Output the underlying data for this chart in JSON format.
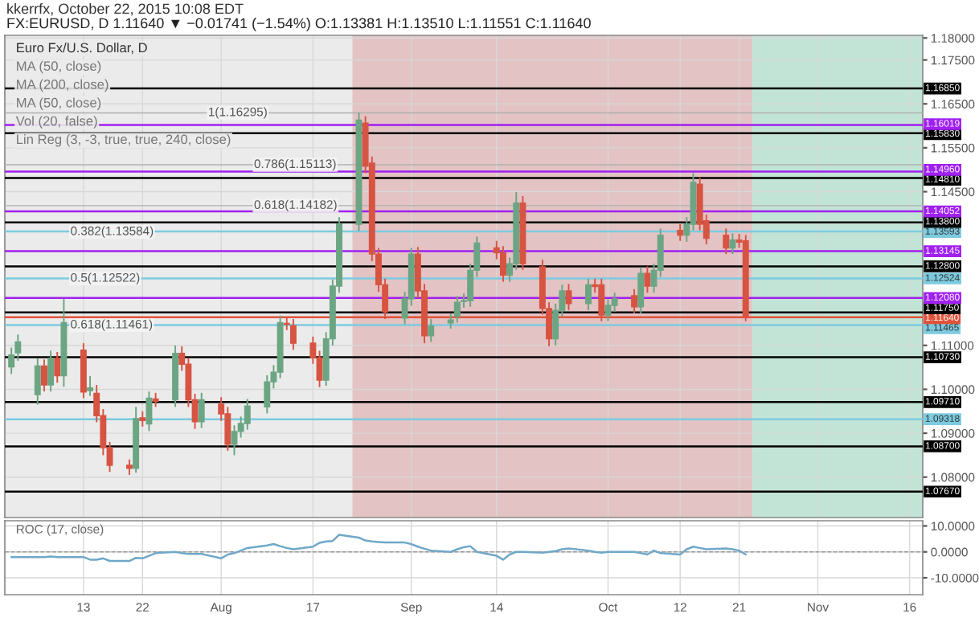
{
  "chart_data": [
    {
      "type": "candlestick",
      "title": "kkerrfx, October 22, 2015 10:08 EDT",
      "subtitle": "FX:EURUSD, D 1.11640 ▼ −0.01741 (−1.54%) O:1.13381 H:1.13510 L:1.11551 C:1.11640",
      "annotations": [
        "Euro Fx/U.S. Dollar, D",
        "MA (50, close)",
        "MA (200, close)",
        "MA (50, close)",
        "Vol (20, false)",
        "Lin Reg (3, -3, true, true, 240, close)",
        {
          "text": "1(1.16295)",
          "x": "2015-08-01",
          "y": 1.16295
        },
        {
          "text": "0.786(1.15113)",
          "x": "2015-08-08",
          "y": 1.15113
        },
        {
          "text": "0.618(1.14182)",
          "x": "2015-08-08",
          "y": 1.14182
        },
        {
          "text": "0.382(1.13584)",
          "x": "2015-07-11",
          "y": 1.13584
        },
        {
          "text": "0.5(1.12522)",
          "x": "2015-07-11",
          "y": 1.12522
        },
        {
          "text": "0.618(1.11461)",
          "x": "2015-07-11",
          "y": 1.11461
        }
      ],
      "x": [
        "2015-07-02",
        "2015-07-03",
        "2015-07-06",
        "2015-07-07",
        "2015-07-08",
        "2015-07-09",
        "2015-07-10",
        "2015-07-13",
        "2015-07-14",
        "2015-07-15",
        "2015-07-16",
        "2015-07-17",
        "2015-07-20",
        "2015-07-21",
        "2015-07-22",
        "2015-07-23",
        "2015-07-24",
        "2015-07-27",
        "2015-07-28",
        "2015-07-29",
        "2015-07-30",
        "2015-07-31",
        "2015-08-03",
        "2015-08-04",
        "2015-08-05",
        "2015-08-06",
        "2015-08-07",
        "2015-08-10",
        "2015-08-11",
        "2015-08-12",
        "2015-08-13",
        "2015-08-14",
        "2015-08-17",
        "2015-08-18",
        "2015-08-19",
        "2015-08-20",
        "2015-08-21",
        "2015-08-24",
        "2015-08-25",
        "2015-08-26",
        "2015-08-27",
        "2015-08-28",
        "2015-08-31",
        "2015-09-01",
        "2015-09-02",
        "2015-09-03",
        "2015-09-04",
        "2015-09-07",
        "2015-09-08",
        "2015-09-09",
        "2015-09-10",
        "2015-09-11",
        "2015-09-14",
        "2015-09-15",
        "2015-09-16",
        "2015-09-17",
        "2015-09-18",
        "2015-09-21",
        "2015-09-22",
        "2015-09-23",
        "2015-09-24",
        "2015-09-25",
        "2015-09-28",
        "2015-09-29",
        "2015-09-30",
        "2015-10-01",
        "2015-10-02",
        "2015-10-05",
        "2015-10-06",
        "2015-10-07",
        "2015-10-08",
        "2015-10-09",
        "2015-10-12",
        "2015-10-13",
        "2015-10-14",
        "2015-10-15",
        "2015-10-16",
        "2015-10-19",
        "2015-10-20",
        "2015-10-21",
        "2015-10-22"
      ],
      "ohlc": [
        [
          1.1051,
          1.1095,
          1.1035,
          1.1078
        ],
        [
          1.1083,
          1.1125,
          1.1065,
          1.1108
        ],
        [
          1.0988,
          1.107,
          1.0965,
          1.1053
        ],
        [
          1.1053,
          1.1068,
          1.0995,
          1.101
        ],
        [
          1.101,
          1.1088,
          1.0995,
          1.1071
        ],
        [
          1.1071,
          1.1085,
          1.1015,
          1.1031
        ],
        [
          1.1031,
          1.1206,
          1.1006,
          1.1152
        ],
        [
          1.1089,
          1.1105,
          1.098,
          1.0994
        ],
        [
          1.0997,
          1.103,
          1.0985,
          1.1003
        ],
        [
          1.0991,
          1.101,
          1.0925,
          1.094
        ],
        [
          1.094,
          1.0955,
          1.085,
          1.0867
        ],
        [
          1.0867,
          1.088,
          1.0812,
          1.0827
        ],
        [
          1.0827,
          1.084,
          1.0805,
          1.082
        ],
        [
          1.082,
          1.096,
          1.081,
          1.0933
        ],
        [
          1.0935,
          1.095,
          1.0915,
          1.0929
        ],
        [
          1.0921,
          1.0995,
          1.0905,
          1.098
        ],
        [
          1.0978,
          1.0992,
          1.096,
          1.0973
        ],
        [
          1.0976,
          1.11,
          1.096,
          1.1082
        ],
        [
          1.1082,
          1.1098,
          1.1042,
          1.1057
        ],
        [
          1.1057,
          1.1072,
          1.096,
          1.0976
        ],
        [
          1.0976,
          1.099,
          1.091,
          1.0926
        ],
        [
          1.0926,
          1.0992,
          1.0912,
          1.0976
        ],
        [
          1.0966,
          1.0982,
          1.0928,
          1.0944
        ],
        [
          1.0944,
          1.096,
          1.086,
          1.0875
        ],
        [
          1.0875,
          1.0918,
          1.085,
          1.0904
        ],
        [
          1.0904,
          1.0938,
          1.089,
          1.0922
        ],
        [
          1.0922,
          1.0978,
          1.0908,
          1.0962
        ],
        [
          1.096,
          1.1032,
          1.0945,
          1.1017
        ],
        [
          1.1017,
          1.1055,
          1.1002,
          1.1039
        ],
        [
          1.1039,
          1.1168,
          1.1025,
          1.1152
        ],
        [
          1.115,
          1.1165,
          1.1135,
          1.1148
        ],
        [
          1.1145,
          1.116,
          1.109,
          1.1105
        ],
        [
          1.1105,
          1.112,
          1.1058,
          1.1072
        ],
        [
          1.1072,
          1.1088,
          1.1005,
          1.1021
        ],
        [
          1.1021,
          1.113,
          1.1008,
          1.1115
        ],
        [
          1.1115,
          1.125,
          1.11,
          1.1235
        ],
        [
          1.1235,
          1.1392,
          1.122,
          1.1376
        ],
        [
          1.1376,
          1.163,
          1.136,
          1.1613
        ],
        [
          1.1606,
          1.1622,
          1.1492,
          1.1508
        ],
        [
          1.1515,
          1.153,
          1.1292,
          1.1308
        ],
        [
          1.1308,
          1.1322,
          1.1222,
          1.1238
        ],
        [
          1.1238,
          1.1252,
          1.116,
          1.1176
        ],
        [
          1.1162,
          1.1222,
          1.1148,
          1.1206
        ],
        [
          1.1206,
          1.1322,
          1.119,
          1.1308
        ],
        [
          1.1308,
          1.1324,
          1.1208,
          1.1224
        ],
        [
          1.1224,
          1.124,
          1.1105,
          1.1122
        ],
        [
          1.1122,
          1.116,
          1.1108,
          1.1144
        ],
        [
          1.1151,
          1.1172,
          1.1138,
          1.1158
        ],
        [
          1.1166,
          1.1212,
          1.1152,
          1.1198
        ],
        [
          1.12,
          1.1218,
          1.1186,
          1.1202
        ],
        [
          1.1202,
          1.1286,
          1.1188,
          1.1271
        ],
        [
          1.1271,
          1.1348,
          1.1256,
          1.1333
        ],
        [
          1.1322,
          1.1338,
          1.1296,
          1.1311
        ],
        [
          1.1311,
          1.1326,
          1.1245,
          1.126
        ],
        [
          1.126,
          1.13,
          1.1245,
          1.1286
        ],
        [
          1.1286,
          1.1449,
          1.1272,
          1.1424
        ],
        [
          1.1424,
          1.144,
          1.1272,
          1.1286
        ],
        [
          1.1279,
          1.1295,
          1.117,
          1.1184
        ],
        [
          1.1184,
          1.1198,
          1.1098,
          1.1115
        ],
        [
          1.1115,
          1.1195,
          1.11,
          1.118
        ],
        [
          1.118,
          1.1238,
          1.1165,
          1.1224
        ],
        [
          1.1224,
          1.124,
          1.118,
          1.1195
        ],
        [
          1.1195,
          1.1252,
          1.118,
          1.1238
        ],
        [
          1.1238,
          1.1252,
          1.122,
          1.1234
        ],
        [
          1.1238,
          1.1252,
          1.1155,
          1.1169
        ],
        [
          1.1169,
          1.1205,
          1.1155,
          1.1191
        ],
        [
          1.1191,
          1.122,
          1.1176,
          1.1206
        ],
        [
          1.1213,
          1.1228,
          1.1173,
          1.1188
        ],
        [
          1.1188,
          1.1278,
          1.1172,
          1.1264
        ],
        [
          1.1264,
          1.128,
          1.122,
          1.1235
        ],
        [
          1.1235,
          1.1286,
          1.122,
          1.1271
        ],
        [
          1.1271,
          1.1366,
          1.1256,
          1.1351
        ],
        [
          1.1362,
          1.1376,
          1.1338,
          1.1351
        ],
        [
          1.1351,
          1.1392,
          1.1336,
          1.1376
        ],
        [
          1.1376,
          1.1492,
          1.1362,
          1.1471
        ],
        [
          1.1467,
          1.1482,
          1.1362,
          1.1376
        ],
        [
          1.1384,
          1.1398,
          1.133,
          1.1344
        ],
        [
          1.1351,
          1.1366,
          1.1308,
          1.1322
        ],
        [
          1.1322,
          1.1355,
          1.1308,
          1.134
        ],
        [
          1.134,
          1.1354,
          1.1322,
          1.1335
        ],
        [
          1.13381,
          1.1351,
          1.11551,
          1.1164
        ]
      ],
      "xlim": [
        "2015-07-01",
        "2015-11-18"
      ],
      "xticks": [
        {
          "value": "2015-07-13",
          "label": null
        },
        {
          "value": "2015-07-22",
          "label": null
        },
        {
          "value": "2015-08-03",
          "label": null
        },
        {
          "value": "2015-08-17",
          "label": null
        },
        {
          "value": "2015-09-01",
          "label": null
        },
        {
          "value": "2015-09-14",
          "label": null
        },
        {
          "value": "2015-10-01",
          "label": null
        },
        {
          "value": "2015-10-12",
          "label": null
        },
        {
          "value": "2015-10-21",
          "label": null
        },
        {
          "value": "2015-11-02",
          "label": null
        },
        {
          "value": "2015-11-16",
          "label": null
        }
      ],
      "ylim": [
        1.0708,
        1.1806
      ],
      "yticks": [
        {
          "value": 1.08,
          "label": "1.08000"
        },
        {
          "value": 1.09,
          "label": "1.09000"
        },
        {
          "value": 1.1,
          "label": "1.10000"
        },
        {
          "value": 1.11,
          "label": "1.11000"
        },
        {
          "value": 1.145,
          "label": "1.14500"
        },
        {
          "value": 1.155,
          "label": "1.15500"
        },
        {
          "value": 1.165,
          "label": "1.16500"
        },
        {
          "value": 1.175,
          "label": "1.17500"
        },
        {
          "value": 1.18,
          "label": "1.18000"
        }
      ],
      "tick_labels": "y",
      "grid": true,
      "legend": "right",
      "bands": [
        {
          "axis": "x",
          "from": "2015-07-01",
          "to": "2015-08-23",
          "color": "#ebebeb"
        },
        {
          "axis": "x",
          "from": "2015-08-23",
          "to": "2015-10-23",
          "color": "#e3c3c3"
        },
        {
          "axis": "x",
          "from": "2015-10-23",
          "to": "2015-11-18",
          "color": "#c2e4d6"
        }
      ],
      "ref_lines": [
        {
          "axis": "y",
          "value": 1.16295,
          "color": "#b0b0b0"
        },
        {
          "axis": "y",
          "value": 1.15113,
          "color": "#b0b0b0"
        },
        {
          "axis": "y",
          "value": 1.14182,
          "color": "#b0b0b0"
        },
        {
          "axis": "y",
          "value": 1.1685,
          "label": "1.16850",
          "color": "#000000"
        },
        {
          "axis": "y",
          "value": 1.16019,
          "label": "1.16019",
          "color": "#a020f0"
        },
        {
          "axis": "y",
          "value": 1.1583,
          "label": "1.15830",
          "color": "#000000"
        },
        {
          "axis": "y",
          "value": 1.1496,
          "label": "1.14960",
          "color": "#a020f0"
        },
        {
          "axis": "y",
          "value": 1.1481,
          "label": "1.14810",
          "color": "#000000"
        },
        {
          "axis": "y",
          "value": 1.14052,
          "label": "1.14052",
          "color": "#a020f0"
        },
        {
          "axis": "y",
          "value": 1.138,
          "label": "1.13800",
          "color": "#000000"
        },
        {
          "axis": "y",
          "value": 1.13593,
          "label": "1.13593",
          "color": "#7ccbe0"
        },
        {
          "axis": "y",
          "value": 1.13145,
          "label": "1.13145",
          "color": "#a020f0"
        },
        {
          "axis": "y",
          "value": 1.128,
          "label": "1.12800",
          "color": "#000000"
        },
        {
          "axis": "y",
          "value": 1.12524,
          "label": "1.12524",
          "color": "#7ccbe0"
        },
        {
          "axis": "y",
          "value": 1.1208,
          "label": "1.12080",
          "color": "#a020f0"
        },
        {
          "axis": "y",
          "value": 1.1175,
          "label": "1.11750",
          "color": "#000000"
        },
        {
          "axis": "y",
          "value": 1.1164,
          "label": "1.11640",
          "color": "#e0533a"
        },
        {
          "axis": "y",
          "value": 1.11465,
          "label": "1.11465",
          "color": "#7ccbe0"
        },
        {
          "axis": "y",
          "value": 1.1073,
          "label": "1.10730",
          "color": "#000000"
        },
        {
          "axis": "y",
          "value": 1.0971,
          "label": "1.09710",
          "color": "#000000"
        },
        {
          "axis": "y",
          "value": 1.09318,
          "label": "1.09318",
          "color": "#7ccbe0"
        },
        {
          "axis": "y",
          "value": 1.087,
          "label": "1.08700",
          "color": "#000000"
        },
        {
          "axis": "y",
          "value": 1.0767,
          "label": "1.07670",
          "color": "#000000"
        }
      ]
    },
    {
      "type": "line",
      "title": "ROC (17, close)",
      "x": [
        "2015-07-02",
        "2015-07-03",
        "2015-07-06",
        "2015-07-07",
        "2015-07-08",
        "2015-07-09",
        "2015-07-10",
        "2015-07-13",
        "2015-07-14",
        "2015-07-15",
        "2015-07-16",
        "2015-07-17",
        "2015-07-20",
        "2015-07-21",
        "2015-07-22",
        "2015-07-23",
        "2015-07-24",
        "2015-07-27",
        "2015-07-28",
        "2015-07-29",
        "2015-07-30",
        "2015-07-31",
        "2015-08-03",
        "2015-08-04",
        "2015-08-05",
        "2015-08-06",
        "2015-08-07",
        "2015-08-10",
        "2015-08-11",
        "2015-08-12",
        "2015-08-13",
        "2015-08-14",
        "2015-08-17",
        "2015-08-18",
        "2015-08-19",
        "2015-08-20",
        "2015-08-21",
        "2015-08-24",
        "2015-08-25",
        "2015-08-26",
        "2015-08-27",
        "2015-08-28",
        "2015-08-31",
        "2015-09-01",
        "2015-09-02",
        "2015-09-03",
        "2015-09-04",
        "2015-09-07",
        "2015-09-08",
        "2015-09-09",
        "2015-09-10",
        "2015-09-11",
        "2015-09-14",
        "2015-09-15",
        "2015-09-16",
        "2015-09-17",
        "2015-09-18",
        "2015-09-21",
        "2015-09-22",
        "2015-09-23",
        "2015-09-24",
        "2015-09-25",
        "2015-09-28",
        "2015-09-29",
        "2015-09-30",
        "2015-10-01",
        "2015-10-02",
        "2015-10-05",
        "2015-10-06",
        "2015-10-07",
        "2015-10-08",
        "2015-10-09",
        "2015-10-12",
        "2015-10-13",
        "2015-10-14",
        "2015-10-15",
        "2015-10-16",
        "2015-10-19",
        "2015-10-20",
        "2015-10-21",
        "2015-10-22"
      ],
      "series": [
        {
          "color": "#6fa8c8",
          "values": [
            -2,
            -2,
            -2,
            -2,
            -1.8,
            -2,
            -2,
            -2,
            -3,
            -3,
            -2.5,
            -3.5,
            -3.5,
            -2.3,
            -2.5,
            -1.5,
            -0.5,
            0,
            -0.5,
            -0.8,
            -0.8,
            -0.8,
            -2.5,
            -1,
            -0.5,
            0.5,
            1.5,
            2.5,
            3,
            2.2,
            1.5,
            1,
            2,
            3.5,
            4,
            4.2,
            6.6,
            5.5,
            4.4,
            4,
            3.8,
            3.6,
            3.6,
            3,
            2,
            1.2,
            0.5,
            0,
            1,
            1.8,
            2.2,
            0,
            -1.5,
            -3,
            -1,
            0,
            0,
            -0.3,
            0,
            0.3,
            1,
            1.3,
            0.5,
            0,
            -0.3,
            0,
            0,
            0,
            -0.5,
            -1,
            0.5,
            -0.5,
            -1,
            1,
            2,
            1.5,
            1,
            1.3,
            1,
            0.5,
            -1
          ]
        }
      ],
      "xlim": [
        "2015-07-01",
        "2015-11-18"
      ],
      "xticks": [
        {
          "value": "2015-07-13",
          "label": "13"
        },
        {
          "value": "2015-07-22",
          "label": "22"
        },
        {
          "value": "2015-08-03",
          "label": "Aug"
        },
        {
          "value": "2015-08-17",
          "label": "17"
        },
        {
          "value": "2015-09-01",
          "label": "Sep"
        },
        {
          "value": "2015-09-14",
          "label": "14"
        },
        {
          "value": "2015-10-01",
          "label": "Oct"
        },
        {
          "value": "2015-10-12",
          "label": "12"
        },
        {
          "value": "2015-10-21",
          "label": "21"
        },
        {
          "value": "2015-11-02",
          "label": "Nov"
        },
        {
          "value": "2015-11-16",
          "label": "16"
        }
      ],
      "ylim": [
        -16.5,
        12
      ],
      "yticks": [
        {
          "value": -10,
          "label": "-10.0000"
        },
        {
          "value": 0,
          "label": "0.0000"
        },
        {
          "value": 10,
          "label": "10.0000"
        }
      ],
      "grid": true,
      "ref_lines": [
        {
          "axis": "y",
          "value": 0,
          "color": "#999999",
          "line_style": "dashed"
        }
      ]
    }
  ]
}
